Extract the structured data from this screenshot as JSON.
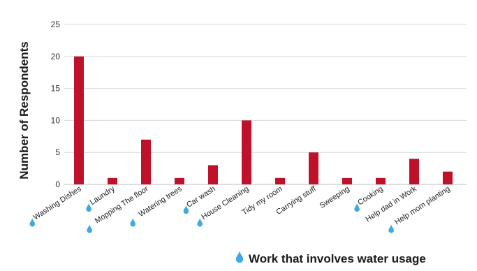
{
  "chart_data": {
    "type": "bar",
    "ylabel": "Number of Respondents",
    "xlabel": "",
    "ylim": [
      0,
      25
    ],
    "yticks": [
      0,
      5,
      10,
      15,
      20,
      25
    ],
    "grid": true,
    "categories": [
      "Washing Dishes",
      "Laundry",
      "Mopping The floor",
      "Watering trees",
      "Car wash",
      "House Cleaning",
      "Tidy my room",
      "Carrying stuff",
      "Sweeping",
      "Cooking",
      "Help dad in Work",
      "Help mom planting"
    ],
    "values": [
      20,
      1,
      7,
      1,
      3,
      10,
      1,
      5,
      1,
      1,
      4,
      2
    ],
    "water_usage": [
      true,
      true,
      true,
      true,
      true,
      true,
      false,
      false,
      false,
      true,
      false,
      true
    ],
    "bar_color": "#c0112a",
    "grid_color": "#d9d9d9",
    "drop_color": "#3fa9e0",
    "legend_note": "Work that involves water usage"
  }
}
